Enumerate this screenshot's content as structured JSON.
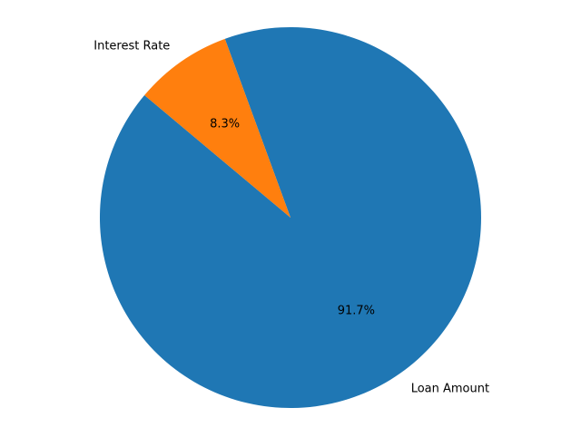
{
  "chart_data": {
    "type": "pie",
    "title": "",
    "slices": [
      {
        "label": "Loan Amount",
        "value": 91.7,
        "percent_label": "91.7%",
        "color": "#1f77b4"
      },
      {
        "label": "Interest Rate",
        "value": 8.3,
        "percent_label": "8.3%",
        "color": "#ff7f0e"
      }
    ],
    "start_angle_deg": 140,
    "direction": "counterclockwise",
    "legend": "none"
  }
}
